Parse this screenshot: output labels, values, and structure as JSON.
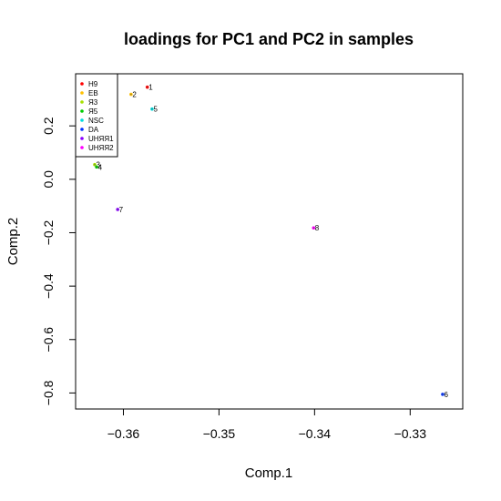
{
  "chart_data": {
    "type": "scatter",
    "title": "loadings for PC1 and PC2 in samples",
    "xlabel": "Comp.1",
    "ylabel": "Comp.2",
    "xlim": [
      -0.365,
      -0.3245
    ],
    "ylim": [
      -0.86,
      0.395
    ],
    "xticks": [
      -0.36,
      -0.35,
      -0.34,
      -0.33
    ],
    "xtick_labels": [
      "−0.36",
      "−0.35",
      "−0.34",
      "−0.33"
    ],
    "yticks": [
      0.2,
      0.0,
      -0.2,
      -0.4,
      -0.6,
      -0.8
    ],
    "ytick_labels": [
      "0.2",
      "0.0",
      "−0.2",
      "−0.4",
      "−0.6",
      "−0.8"
    ],
    "grid": false,
    "legend_position": "top-left",
    "series": [
      {
        "name": "H9",
        "color": "#ff0000",
        "x": -0.3575,
        "y": 0.345,
        "label": "1"
      },
      {
        "name": "EB",
        "color": "#ffc000",
        "x": -0.3592,
        "y": 0.318,
        "label": "2"
      },
      {
        "name": "Я3",
        "color": "#a6e000",
        "x": -0.363,
        "y": 0.055,
        "label": "3"
      },
      {
        "name": "Я5",
        "color": "#00cc00",
        "x": -0.3628,
        "y": 0.046,
        "label": "4"
      },
      {
        "name": "NSC",
        "color": "#00dddd",
        "x": -0.357,
        "y": 0.263,
        "label": "5"
      },
      {
        "name": "DA",
        "color": "#0033ff",
        "x": -0.3266,
        "y": -0.805,
        "label": "6"
      },
      {
        "name": "UHЯЯ1",
        "color": "#8a00ff",
        "x": -0.3606,
        "y": -0.113,
        "label": "7"
      },
      {
        "name": "UHЯЯ2",
        "color": "#ff00ff",
        "x": -0.3401,
        "y": -0.182,
        "label": "8"
      }
    ]
  }
}
